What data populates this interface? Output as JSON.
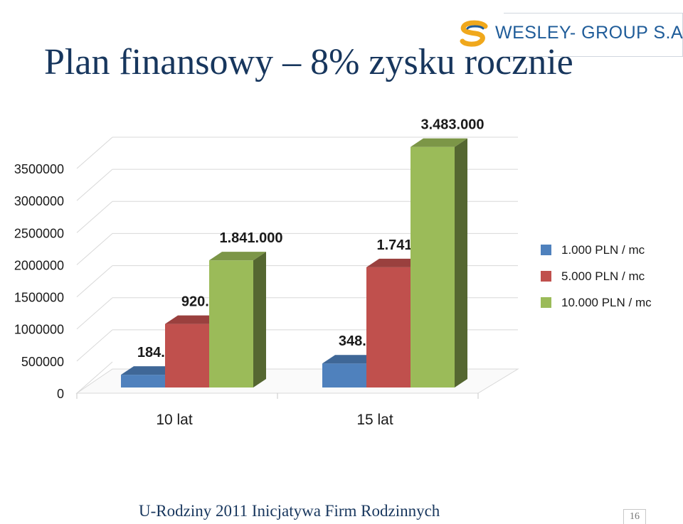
{
  "slide": {
    "title": "Plan finansowy – 8% zysku rocznie",
    "logo_text": "WESLEY- GROUP S.A.",
    "footer": "U-Rodziny 2011  Inicjatywa Firm Rodzinnych",
    "page_number": "16"
  },
  "chart_data": {
    "type": "bar",
    "three_d": true,
    "categories": [
      "10 lat",
      "15 lat"
    ],
    "series": [
      {
        "name": "1.000 PLN / mc",
        "values": [
          184000,
          348000
        ],
        "labels": [
          "184.000",
          "348.000"
        ],
        "color": "#4f81bd"
      },
      {
        "name": "5.000 PLN / mc",
        "values": [
          920000,
          1741000
        ],
        "labels": [
          "920.000",
          "1.741.000"
        ],
        "color": "#c0504d"
      },
      {
        "name": "10.000 PLN / mc",
        "values": [
          1841000,
          3483000
        ],
        "labels": [
          "1.841.000",
          "3.483.000"
        ],
        "color": "#9bbb59"
      }
    ],
    "ylim": [
      0,
      3500000
    ],
    "yticks": [
      "0",
      "500000",
      "1000000",
      "1500000",
      "2000000",
      "2500000",
      "3000000",
      "3500000"
    ],
    "grid": true,
    "legend_position": "right",
    "title": "",
    "xlabel": "",
    "ylabel": ""
  }
}
